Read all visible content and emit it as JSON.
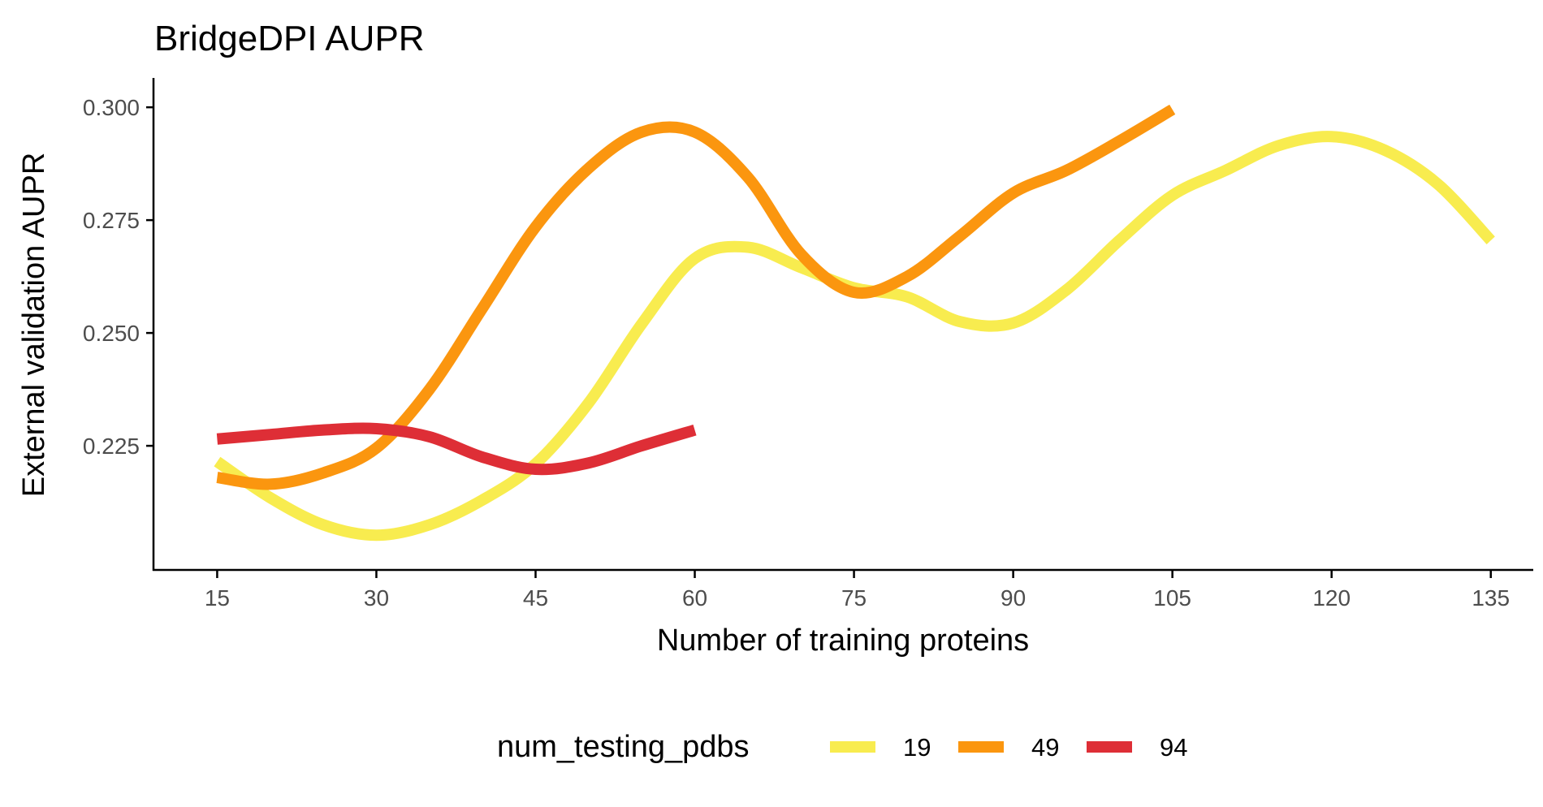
{
  "chart_data": {
    "type": "line",
    "title": "BridgeDPI AUPR",
    "xlabel": "Number of training proteins",
    "ylabel": "External validation AUPR",
    "xlim": [
      9,
      139
    ],
    "ylim": [
      0.1975,
      0.3065
    ],
    "xticks": [
      15,
      30,
      45,
      60,
      75,
      90,
      105,
      120,
      135
    ],
    "xtick_labels": [
      "15",
      "30",
      "45",
      "60",
      "75",
      "90",
      "105",
      "120",
      "135"
    ],
    "yticks": [
      0.225,
      0.25,
      0.275,
      0.3
    ],
    "ytick_labels": [
      "0.225",
      "0.250",
      "0.275",
      "0.300"
    ],
    "grid": false,
    "legend": {
      "title": "num_testing_pdbs",
      "placement": "bottom"
    },
    "series": [
      {
        "name": "19",
        "color": "#F8EC4F",
        "x": [
          15,
          20,
          25,
          30,
          35,
          40,
          45,
          50,
          55,
          60,
          65,
          70,
          75,
          80,
          85,
          90,
          95,
          100,
          105,
          110,
          115,
          120,
          125,
          130,
          135
        ],
        "y": [
          0.2215,
          0.2135,
          0.2075,
          0.2052,
          0.2075,
          0.213,
          0.221,
          0.2345,
          0.252,
          0.2665,
          0.269,
          0.2645,
          0.26,
          0.258,
          0.2525,
          0.2522,
          0.2595,
          0.2705,
          0.2805,
          0.286,
          0.2915,
          0.2935,
          0.2905,
          0.283,
          0.2705
        ]
      },
      {
        "name": "49",
        "color": "#FB960F",
        "x": [
          15,
          20,
          25,
          30,
          35,
          40,
          45,
          50,
          55,
          60,
          65,
          70,
          75,
          80,
          85,
          90,
          95,
          100,
          105
        ],
        "y": [
          0.218,
          0.2165,
          0.219,
          0.2245,
          0.2375,
          0.2555,
          0.2735,
          0.2865,
          0.2945,
          0.2945,
          0.2845,
          0.2675,
          0.259,
          0.2625,
          0.2715,
          0.281,
          0.286,
          0.2925,
          0.2995
        ]
      },
      {
        "name": "94",
        "color": "#DE2E36",
        "x": [
          15,
          20,
          25,
          30,
          35,
          40,
          45,
          50,
          55,
          60
        ],
        "y": [
          0.2265,
          0.2275,
          0.2285,
          0.2288,
          0.227,
          0.2225,
          0.2198,
          0.2212,
          0.225,
          0.2285
        ]
      }
    ]
  }
}
